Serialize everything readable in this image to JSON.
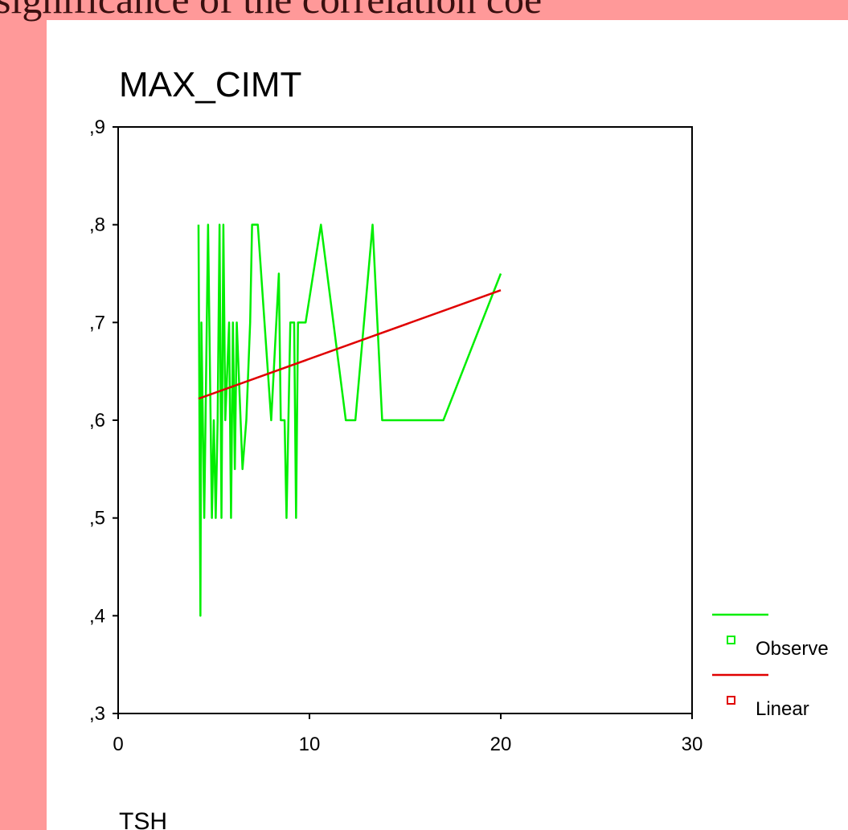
{
  "heading": "significance of the correlation coe",
  "chart_data": {
    "type": "line",
    "y_label": "MAX_CIMT",
    "x_label": "TSH",
    "xlim": [
      0,
      30
    ],
    "xticks": [
      0,
      10,
      20,
      30
    ],
    "ylim": [
      0.3,
      0.9
    ],
    "yticks": [
      {
        "value": 0.3,
        "label": ",3"
      },
      {
        "value": 0.4,
        "label": ",4"
      },
      {
        "value": 0.5,
        "label": ",5"
      },
      {
        "value": 0.6,
        "label": ",6"
      },
      {
        "value": 0.7,
        "label": ",7"
      },
      {
        "value": 0.8,
        "label": ",8"
      },
      {
        "value": 0.9,
        "label": ",9"
      }
    ],
    "grid": false,
    "legend": "right",
    "series": [
      {
        "name": "Observe",
        "color": "#00ee00",
        "x": [
          4.2,
          4.3,
          4.35,
          4.5,
          4.7,
          4.9,
          5.0,
          5.1,
          5.2,
          5.3,
          5.4,
          5.5,
          5.6,
          5.8,
          5.9,
          6.0,
          6.1,
          6.2,
          6.4,
          6.5,
          6.7,
          6.9,
          7.0,
          7.3,
          8.0,
          8.4,
          8.5,
          8.7,
          8.8,
          9.0,
          9.2,
          9.3,
          9.4,
          9.8,
          10.6,
          11.9,
          12.4,
          13.3,
          13.8,
          17.0,
          20.0
        ],
        "values": [
          0.8,
          0.4,
          0.7,
          0.5,
          0.8,
          0.5,
          0.6,
          0.5,
          0.6,
          0.8,
          0.5,
          0.8,
          0.6,
          0.7,
          0.5,
          0.7,
          0.55,
          0.7,
          0.6,
          0.55,
          0.6,
          0.7,
          0.8,
          0.8,
          0.6,
          0.75,
          0.6,
          0.6,
          0.5,
          0.7,
          0.7,
          0.5,
          0.7,
          0.7,
          0.8,
          0.6,
          0.6,
          0.8,
          0.6,
          0.6,
          0.75
        ]
      },
      {
        "name": "Linear",
        "color": "#e00000",
        "x": [
          4.2,
          20.0
        ],
        "values": [
          0.622,
          0.733
        ]
      }
    ]
  }
}
